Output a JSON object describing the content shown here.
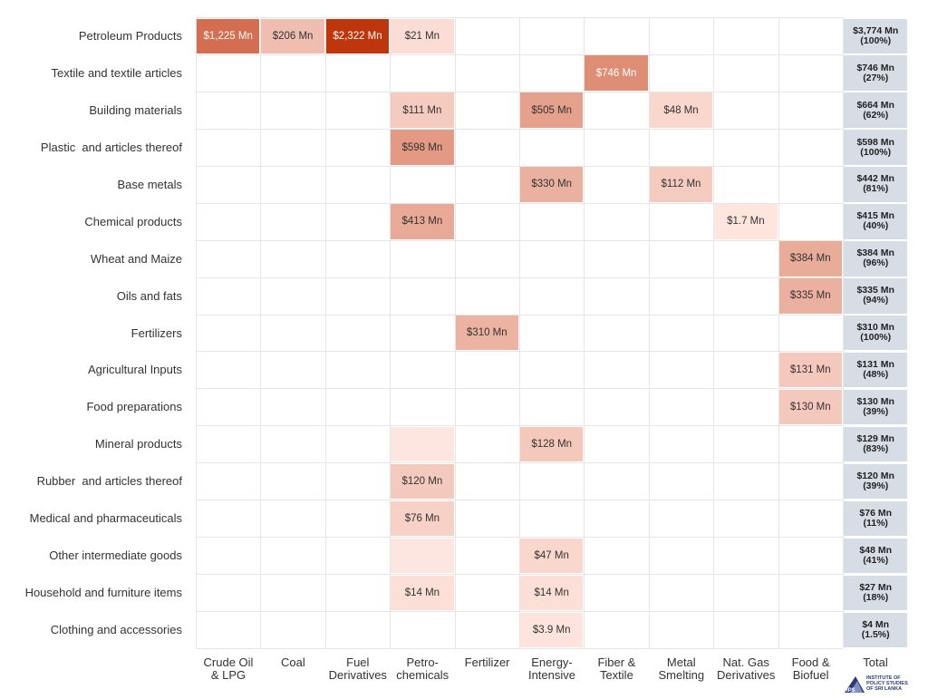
{
  "chart_data": {
    "type": "heatmap",
    "title": "",
    "columns": [
      "Crude Oil\n& LPG",
      "Coal",
      "Fuel\nDerivatives",
      "Petro-\nchemicals",
      "Fertilizer",
      "Energy-\nIntensive",
      "Fiber &\nTextile",
      "Metal\nSmelting",
      "Nat. Gas\nDerivatives",
      "Food &\nBiofuel"
    ],
    "total_header": "Total",
    "rows": [
      {
        "label": "Petroleum Products",
        "cells": [
          {
            "col": 0,
            "value": 1225,
            "text": "$1,225 Mn"
          },
          {
            "col": 1,
            "value": 206,
            "text": "$206 Mn"
          },
          {
            "col": 2,
            "value": 2322,
            "text": "$2,322 Mn"
          },
          {
            "col": 3,
            "value": 21,
            "text": "$21 Mn"
          }
        ],
        "total": "$3,774 Mn",
        "share": "(100%)"
      },
      {
        "label": "Textile and textile articles",
        "cells": [
          {
            "col": 6,
            "value": 746,
            "text": "$746 Mn"
          }
        ],
        "total": "$746 Mn",
        "share": "(27%)"
      },
      {
        "label": "Building materials",
        "cells": [
          {
            "col": 3,
            "value": 111,
            "text": "$111 Mn"
          },
          {
            "col": 5,
            "value": 505,
            "text": "$505 Mn"
          },
          {
            "col": 7,
            "value": 48,
            "text": "$48 Mn"
          }
        ],
        "total": "$664 Mn",
        "share": "(62%)"
      },
      {
        "label": "Plastic  and articles thereof",
        "cells": [
          {
            "col": 3,
            "value": 598,
            "text": "$598 Mn"
          }
        ],
        "total": "$598 Mn",
        "share": "(100%)"
      },
      {
        "label": "Base metals",
        "cells": [
          {
            "col": 5,
            "value": 330,
            "text": "$330 Mn"
          },
          {
            "col": 7,
            "value": 112,
            "text": "$112 Mn"
          }
        ],
        "total": "$442 Mn",
        "share": "(81%)"
      },
      {
        "label": "Chemical products",
        "cells": [
          {
            "col": 3,
            "value": 413,
            "text": "$413 Mn"
          },
          {
            "col": 8,
            "value": 1.7,
            "text": "$1.7 Mn"
          }
        ],
        "total": "$415 Mn",
        "share": "(40%)"
      },
      {
        "label": "Wheat and Maize",
        "cells": [
          {
            "col": 9,
            "value": 384,
            "text": "$384 Mn"
          }
        ],
        "total": "$384 Mn",
        "share": "(96%)"
      },
      {
        "label": "Oils and fats",
        "cells": [
          {
            "col": 9,
            "value": 335,
            "text": "$335 Mn"
          }
        ],
        "total": "$335 Mn",
        "share": "(94%)"
      },
      {
        "label": "Fertilizers",
        "cells": [
          {
            "col": 4,
            "value": 310,
            "text": "$310 Mn"
          }
        ],
        "total": "$310 Mn",
        "share": "(100%)"
      },
      {
        "label": "Agricultural Inputs",
        "cells": [
          {
            "col": 9,
            "value": 131,
            "text": "$131 Mn"
          }
        ],
        "total": "$131 Mn",
        "share": "(48%)"
      },
      {
        "label": "Food preparations",
        "cells": [
          {
            "col": 9,
            "value": 130,
            "text": "$130 Mn"
          }
        ],
        "total": "$130 Mn",
        "share": "(39%)"
      },
      {
        "label": "Mineral products",
        "cells": [
          {
            "col": 3,
            "value": 1,
            "text": ""
          },
          {
            "col": 5,
            "value": 128,
            "text": "$128 Mn"
          }
        ],
        "total": "$129 Mn",
        "share": "(83%)"
      },
      {
        "label": "Rubber  and articles thereof",
        "cells": [
          {
            "col": 3,
            "value": 120,
            "text": "$120 Mn"
          }
        ],
        "total": "$120 Mn",
        "share": "(39%)"
      },
      {
        "label": "Medical and pharmaceuticals",
        "cells": [
          {
            "col": 3,
            "value": 76,
            "text": "$76 Mn"
          }
        ],
        "total": "$76 Mn",
        "share": "(11%)"
      },
      {
        "label": "Other intermediate goods",
        "cells": [
          {
            "col": 3,
            "value": 1,
            "text": ""
          },
          {
            "col": 5,
            "value": 47,
            "text": "$47 Mn"
          }
        ],
        "total": "$48 Mn",
        "share": "(41%)"
      },
      {
        "label": "Household and furniture items",
        "cells": [
          {
            "col": 3,
            "value": 14,
            "text": "$14 Mn"
          },
          {
            "col": 5,
            "value": 14,
            "text": "$14 Mn"
          }
        ],
        "total": "$27 Mn",
        "share": "(18%)"
      },
      {
        "label": "Clothing and accessories",
        "cells": [
          {
            "col": 5,
            "value": 3.9,
            "text": "$3.9 Mn"
          }
        ],
        "total": "$4 Mn",
        "share": "(1.5%)"
      }
    ],
    "colors": {
      "low": "#ffe8e2",
      "high": "#bf360c",
      "total_bg": "#d7dde5"
    }
  },
  "logo": {
    "text": "INSTITUTE OF POLICY STUDIES OF SRI LANKA",
    "abbr": "IPS"
  }
}
